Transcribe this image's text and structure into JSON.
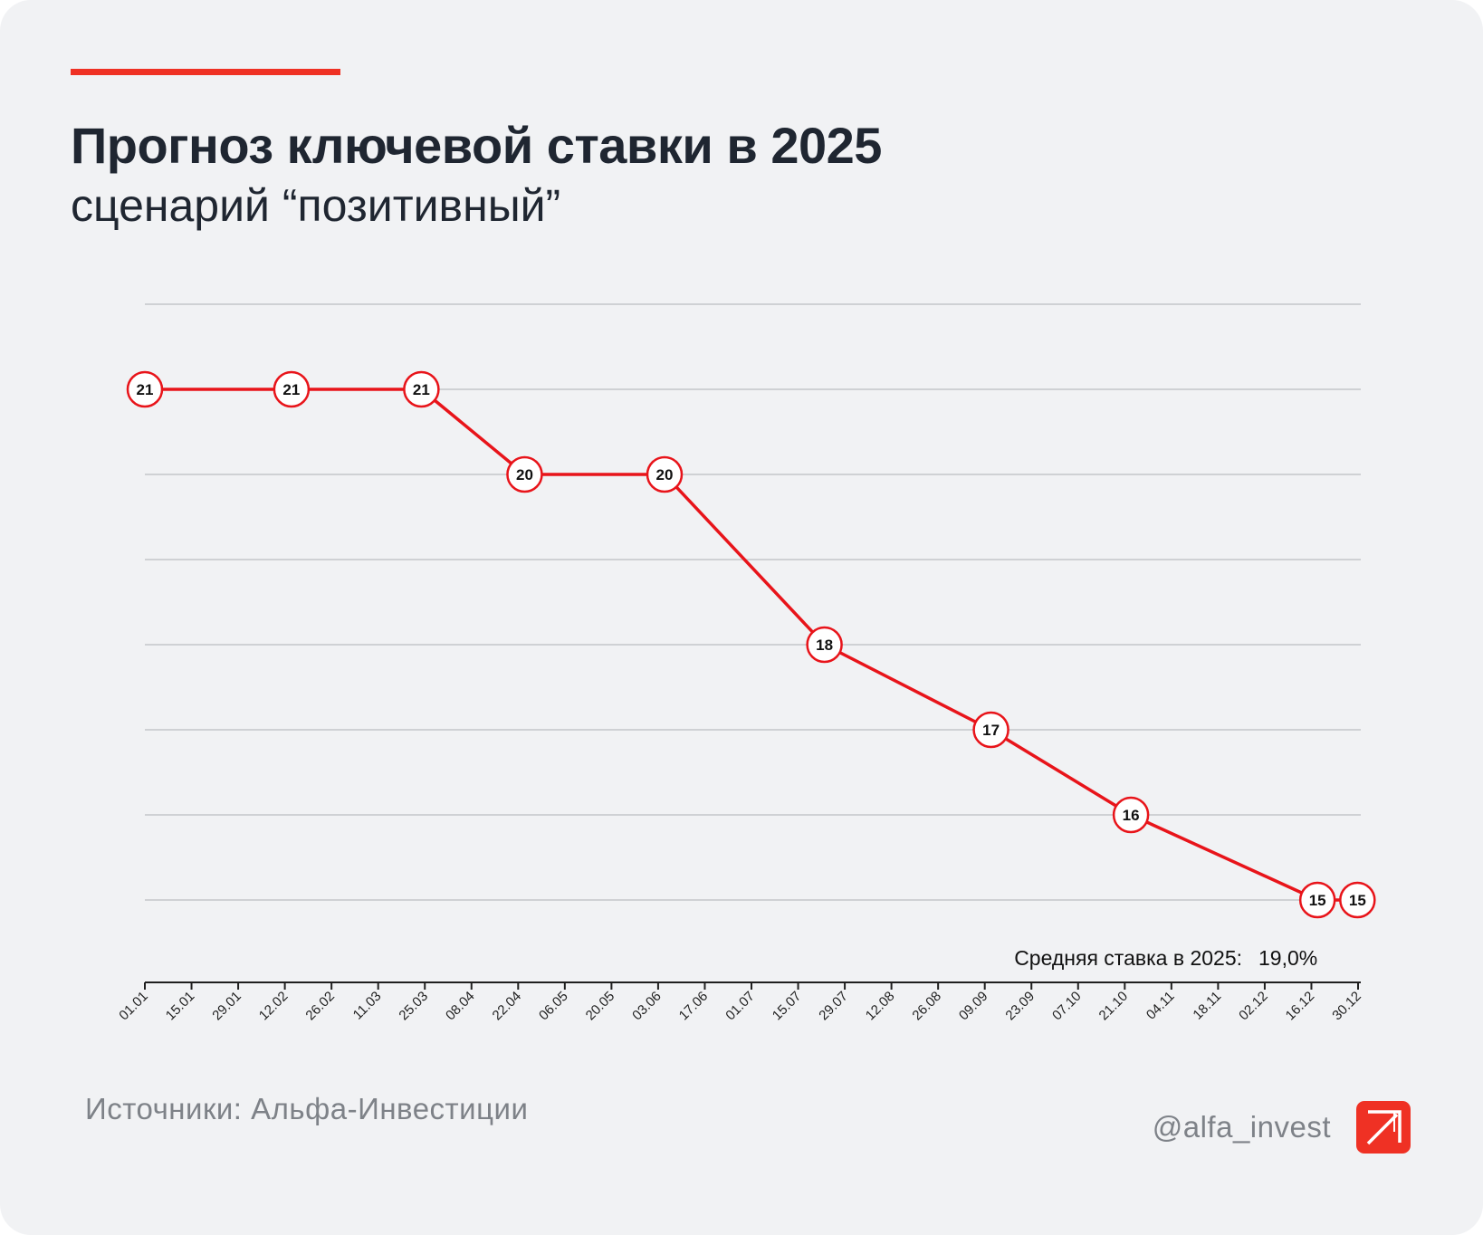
{
  "header": {
    "title": "Прогноз ключевой ставки в 2025",
    "subtitle": "сценарий “позитивный”"
  },
  "footer": {
    "source": "Источники: Альфа-Инвестиции",
    "handle": "@alfa_invest",
    "logo_icon": "alfa-arrow-logo-icon"
  },
  "colors": {
    "accent": "#ef3124",
    "line": "#e8141a",
    "grid": "#c4c6ca",
    "text": "#1f2631",
    "muted": "#7e8288"
  },
  "chart_data": {
    "type": "line",
    "x_labels": [
      "01.01",
      "15.01",
      "29.01",
      "12.02",
      "26.02",
      "11.03",
      "25.03",
      "08.04",
      "22.04",
      "06.05",
      "20.05",
      "03.06",
      "17.06",
      "01.07",
      "15.07",
      "29.07",
      "12.08",
      "26.08",
      "09.09",
      "23.09",
      "07.10",
      "21.10",
      "04.11",
      "18.11",
      "02.12",
      "16.12",
      "30.12"
    ],
    "points": [
      {
        "x": "01.01",
        "y": 21
      },
      {
        "x": "14.02",
        "y": 21
      },
      {
        "x": "25.03",
        "y": 21
      },
      {
        "x": "25.04",
        "y": 20
      },
      {
        "x": "06.06",
        "y": 20
      },
      {
        "x": "24.07",
        "y": 18
      },
      {
        "x": "12.09",
        "y": 17
      },
      {
        "x": "24.10",
        "y": 16
      },
      {
        "x": "19.12",
        "y": 15
      },
      {
        "x": "31.12",
        "y": 15
      }
    ],
    "ylim": [
      14,
      22
    ],
    "grid": true,
    "annotation": {
      "label": "Средняя ставка в 2025:",
      "value": "19,0%"
    }
  }
}
